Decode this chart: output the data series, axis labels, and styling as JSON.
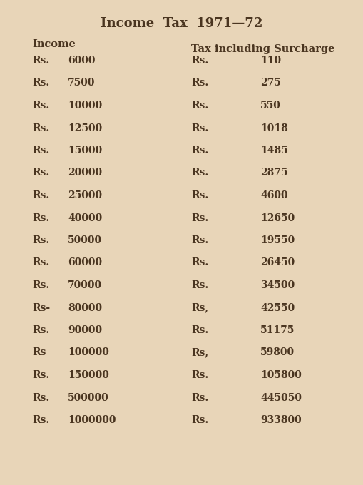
{
  "title": "Income  Tax  1971—72",
  "col1_header": "Income",
  "col2_header": "Tax including Surcharge",
  "rows": [
    {
      "income_prefix": "Rs.",
      "income_val": "6000",
      "tax_prefix": "Rs.",
      "tax_val": "110"
    },
    {
      "income_prefix": "Rs.",
      "income_val": "7500",
      "tax_prefix": "Rs.",
      "tax_val": "275"
    },
    {
      "income_prefix": "Rs.",
      "income_val": "10000",
      "tax_prefix": "Rs.",
      "tax_val": "550"
    },
    {
      "income_prefix": "Rs.",
      "income_val": "12500",
      "tax_prefix": "Rs.",
      "tax_val": "1018"
    },
    {
      "income_prefix": "Rs.",
      "income_val": "15000",
      "tax_prefix": "Rs.",
      "tax_val": "1485"
    },
    {
      "income_prefix": "Rs.",
      "income_val": "20000",
      "tax_prefix": "Rs.",
      "tax_val": "2875"
    },
    {
      "income_prefix": "Rs.",
      "income_val": "25000",
      "tax_prefix": "Rs.",
      "tax_val": "4600"
    },
    {
      "income_prefix": "Rs.",
      "income_val": "40000",
      "tax_prefix": "Rs.",
      "tax_val": "12650"
    },
    {
      "income_prefix": "Rs.",
      "income_val": "50000",
      "tax_prefix": "Rs.",
      "tax_val": "19550"
    },
    {
      "income_prefix": "Rs.",
      "income_val": "60000",
      "tax_prefix": "Rs.",
      "tax_val": "26450"
    },
    {
      "income_prefix": "Rs.",
      "income_val": "70000",
      "tax_prefix": "Rs.",
      "tax_val": "34500"
    },
    {
      "income_prefix": "Rs-",
      "income_val": "80000",
      "tax_prefix": "Rs,",
      "tax_val": "42550"
    },
    {
      "income_prefix": "Rs.",
      "income_val": "90000",
      "tax_prefix": "Rs.",
      "tax_val": "51175"
    },
    {
      "income_prefix": "Rs",
      "income_val": "100000",
      "tax_prefix": "Rs,",
      "tax_val": "59800"
    },
    {
      "income_prefix": "Rs.",
      "income_val": "150000",
      "tax_prefix": "Rs.",
      "tax_val": "105800"
    },
    {
      "income_prefix": "Rs.",
      "income_val": "500000",
      "tax_prefix": "Rs.",
      "tax_val": "445050"
    },
    {
      "income_prefix": "Rs.",
      "income_val": "1000000",
      "tax_prefix": "Rs.",
      "tax_val": "933800"
    }
  ],
  "bg_color": "#e8d5b8",
  "text_color": "#4a3520",
  "title_fontsize": 13,
  "header_fontsize": 10.5,
  "row_fontsize": 10
}
